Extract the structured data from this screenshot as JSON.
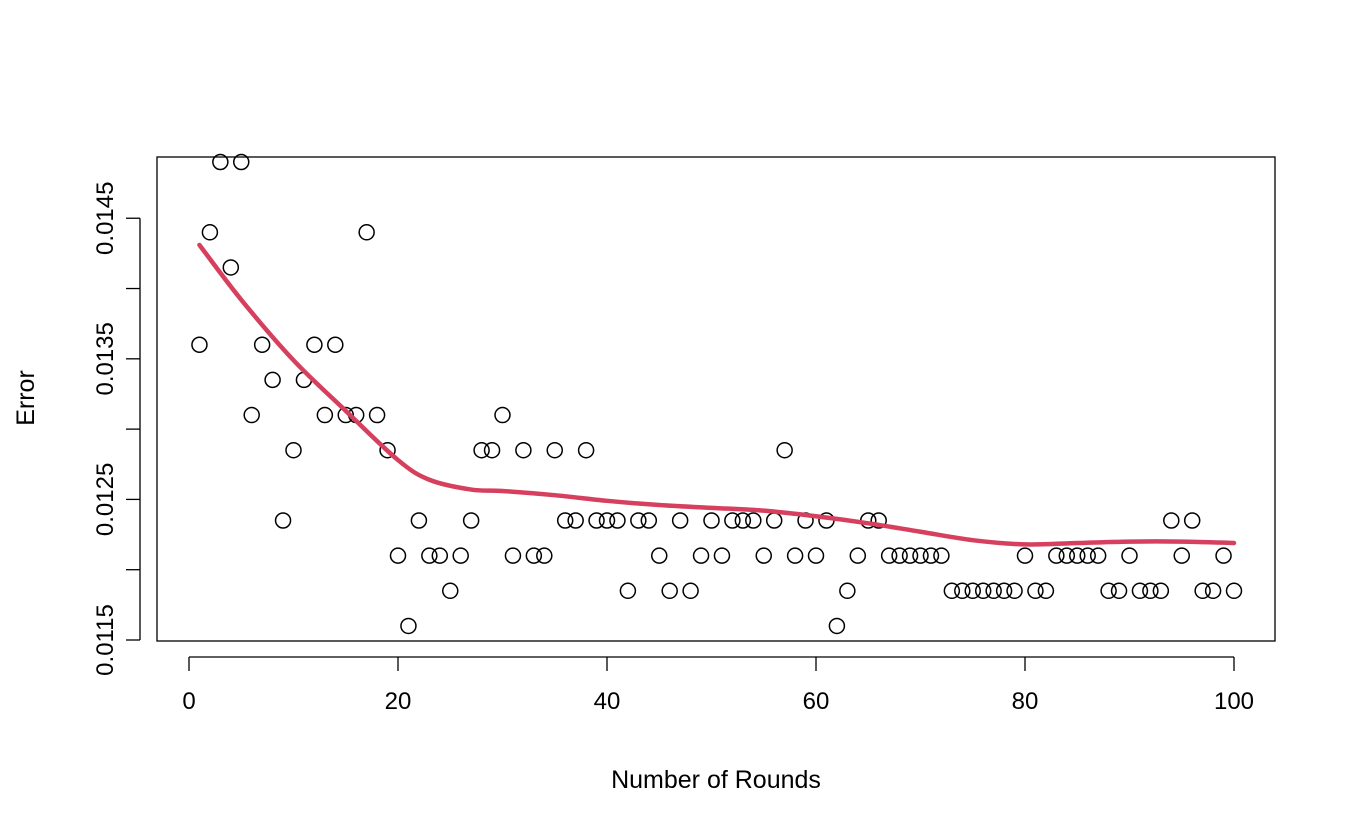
{
  "chart_data": {
    "type": "scatter",
    "title": "",
    "xlabel": "Number of Rounds",
    "ylabel": "Error",
    "xlim": [
      1,
      100
    ],
    "ylim": [
      0.0115,
      0.0149
    ],
    "x_ticks": [
      "0",
      "20",
      "40",
      "60",
      "80",
      "100"
    ],
    "x_tick_values": [
      0,
      20,
      40,
      60,
      80,
      100
    ],
    "y_ticks": [
      "0.0115",
      "0.0125",
      "0.0135",
      "0.0145"
    ],
    "y_tick_values": [
      0.0115,
      0.012,
      0.0125,
      0.013,
      0.0135,
      0.014,
      0.0145
    ],
    "grid": false,
    "point_marker": "open-circle",
    "points": {
      "x": [
        1,
        2,
        3,
        4,
        5,
        6,
        7,
        8,
        9,
        10,
        11,
        12,
        13,
        14,
        15,
        16,
        17,
        18,
        19,
        20,
        21,
        22,
        23,
        24,
        25,
        26,
        27,
        28,
        29,
        30,
        31,
        32,
        33,
        34,
        35,
        36,
        37,
        38,
        39,
        40,
        41,
        42,
        43,
        44,
        45,
        46,
        47,
        48,
        49,
        50,
        51,
        52,
        53,
        54,
        55,
        56,
        57,
        58,
        59,
        60,
        61,
        62,
        63,
        64,
        65,
        66,
        67,
        68,
        69,
        70,
        71,
        72,
        73,
        74,
        75,
        76,
        77,
        78,
        79,
        80,
        81,
        82,
        83,
        84,
        85,
        86,
        87,
        88,
        89,
        90,
        91,
        92,
        93,
        94,
        95,
        96,
        97,
        98,
        99,
        100
      ],
      "y": [
        0.0136,
        0.0144,
        0.0149,
        0.01415,
        0.0149,
        0.0131,
        0.0136,
        0.01335,
        0.01235,
        0.01285,
        0.01335,
        0.0136,
        0.0131,
        0.0136,
        0.0131,
        0.0131,
        0.0144,
        0.0131,
        0.01285,
        0.0121,
        0.0116,
        0.01235,
        0.0121,
        0.0121,
        0.01185,
        0.0121,
        0.01235,
        0.01285,
        0.01285,
        0.0131,
        0.0121,
        0.01285,
        0.0121,
        0.0121,
        0.01285,
        0.01235,
        0.01235,
        0.01285,
        0.01235,
        0.01235,
        0.01235,
        0.01185,
        0.01235,
        0.01235,
        0.0121,
        0.01185,
        0.01235,
        0.01185,
        0.0121,
        0.01235,
        0.0121,
        0.01235,
        0.01235,
        0.01235,
        0.0121,
        0.01235,
        0.01285,
        0.0121,
        0.01235,
        0.0121,
        0.01235,
        0.0116,
        0.01185,
        0.0121,
        0.01235,
        0.01235,
        0.0121,
        0.0121,
        0.0121,
        0.0121,
        0.0121,
        0.0121,
        0.01185,
        0.01185,
        0.01185,
        0.01185,
        0.01185,
        0.01185,
        0.01185,
        0.0121,
        0.01185,
        0.01185,
        0.0121,
        0.0121,
        0.0121,
        0.0121,
        0.0121,
        0.01185,
        0.01185,
        0.0121,
        0.01185,
        0.01185,
        0.01185,
        0.01235,
        0.0121,
        0.01235,
        0.01185,
        0.01185,
        0.0121,
        0.01185
      ]
    },
    "series": [
      {
        "type": "line",
        "color": "#d6405e",
        "x": [
          1,
          5,
          10,
          15,
          20,
          23,
          27,
          30,
          35,
          40,
          45,
          50,
          55,
          60,
          65,
          70,
          75,
          80,
          85,
          90,
          95,
          100
        ],
        "y": [
          0.01431,
          0.01392,
          0.01349,
          0.01313,
          0.01278,
          0.01264,
          0.01257,
          0.01256,
          0.01253,
          0.01249,
          0.01246,
          0.01244,
          0.01242,
          0.01238,
          0.01233,
          0.01227,
          0.01221,
          0.01218,
          0.01219,
          0.0122,
          0.0122,
          0.01219
        ]
      }
    ]
  }
}
